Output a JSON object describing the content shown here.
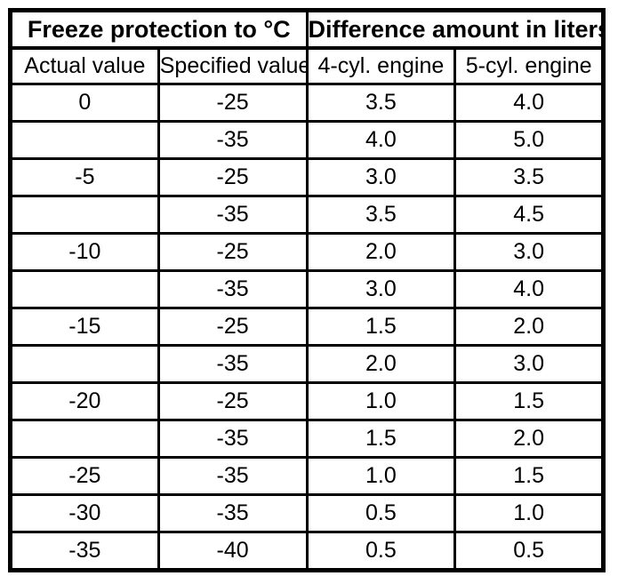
{
  "table": {
    "header_groups": [
      {
        "label": "Freeze protection to °C",
        "colspan": 2
      },
      {
        "label": "Difference amount in liters",
        "colspan": 2
      }
    ],
    "columns": [
      "Actual value",
      "Specified value",
      "4-cyl. engine",
      "5-cyl. engine"
    ],
    "rows": [
      [
        "0",
        "-25",
        "3.5",
        "4.0"
      ],
      [
        "",
        "-35",
        "4.0",
        "5.0"
      ],
      [
        "-5",
        "-25",
        "3.0",
        "3.5"
      ],
      [
        "",
        "-35",
        "3.5",
        "4.5"
      ],
      [
        "-10",
        "-25",
        "2.0",
        "3.0"
      ],
      [
        "",
        "-35",
        "3.0",
        "4.0"
      ],
      [
        "-15",
        "-25",
        "1.5",
        "2.0"
      ],
      [
        "",
        "-35",
        "2.0",
        "3.0"
      ],
      [
        "-20",
        "-25",
        "1.0",
        "1.5"
      ],
      [
        "",
        "-35",
        "1.5",
        "2.0"
      ],
      [
        "-25",
        "-35",
        "1.0",
        "1.5"
      ],
      [
        "-30",
        "-35",
        "0.5",
        "1.0"
      ],
      [
        "-35",
        "-40",
        "0.5",
        "0.5"
      ]
    ],
    "colors": {
      "border": "#000000",
      "text": "#000000",
      "background": "#ffffff"
    }
  }
}
